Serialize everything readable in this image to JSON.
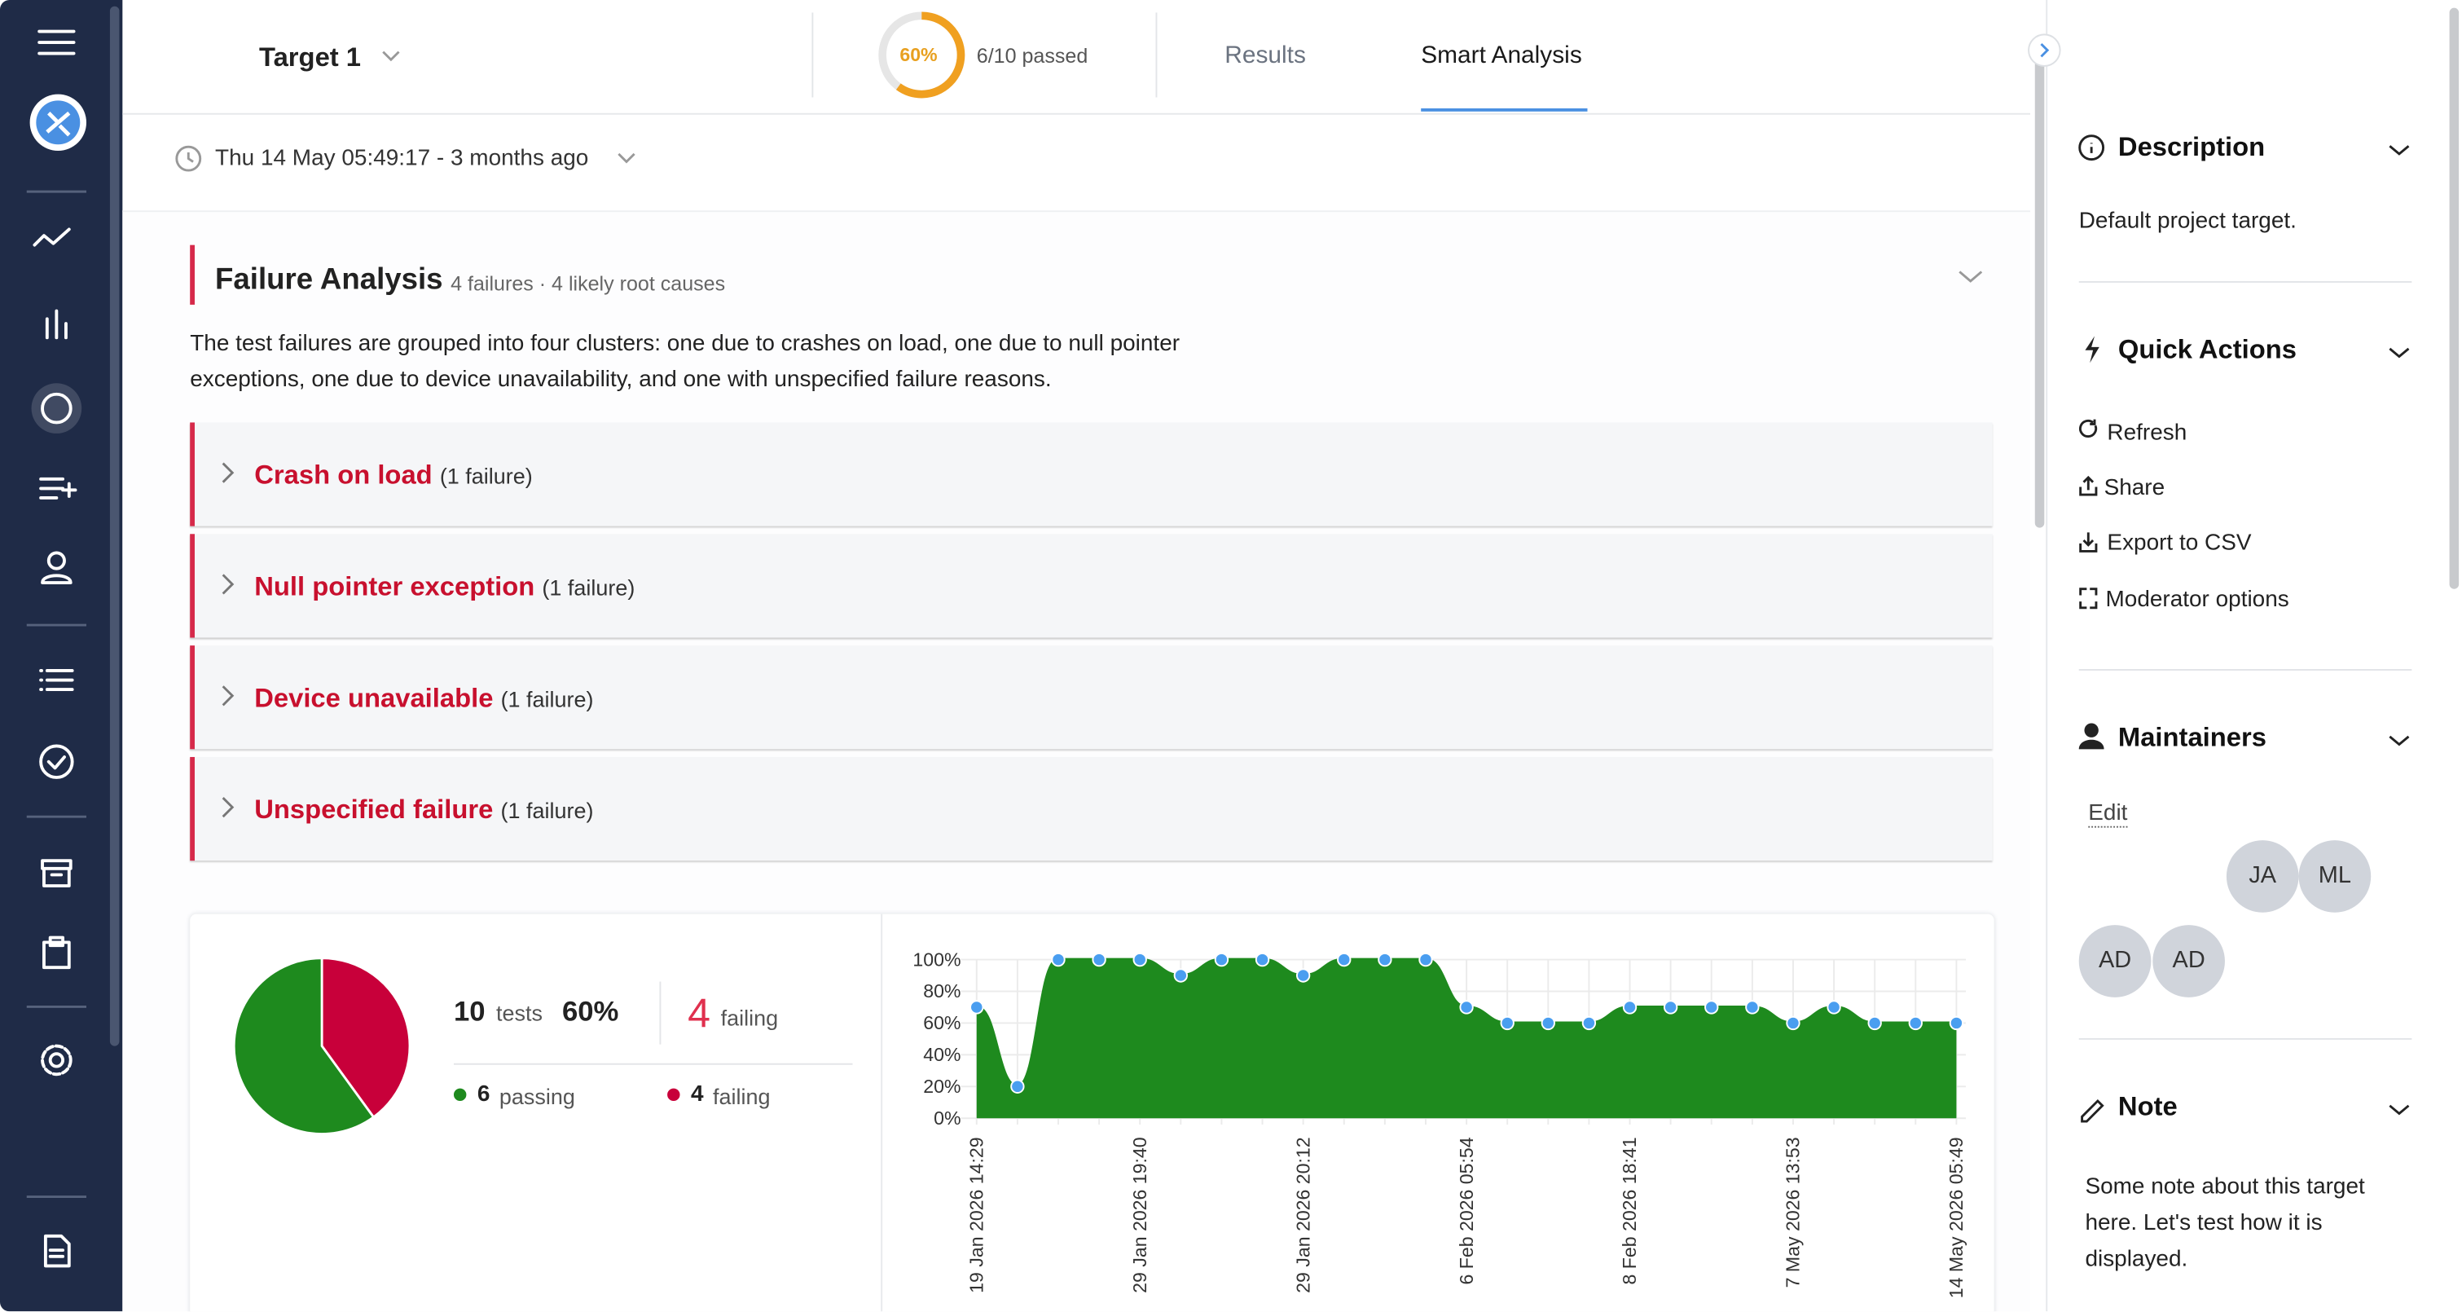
{
  "header": {
    "target": "Target 1",
    "progress": {
      "value": 60,
      "label": "60%"
    },
    "passed": "6/10 passed",
    "tabs": [
      "Results",
      "Smart Analysis"
    ],
    "timestamp": "Thu 14 May 05:49:17 - 3 months ago"
  },
  "analysis": {
    "title": "Failure Analysis",
    "meta": "4 failures · 4 likely root causes",
    "summary": "The test failures are grouped into four clusters: one due to crashes on load, one due to null pointer exceptions, one due to device unavailability, and one with unspecified failure reasons.",
    "clusters": [
      {
        "name": "Crash on load",
        "count": "(1 failure)"
      },
      {
        "name": "Null pointer exception",
        "count": "(1 failure)"
      },
      {
        "name": "Device unavailable",
        "count": "(1 failure)"
      },
      {
        "name": "Unspecified failure",
        "count": "(1 failure)"
      }
    ]
  },
  "stats": {
    "tests": 10,
    "tests_label": "tests",
    "pass_rate": "60%",
    "failing": 4,
    "failing_label": "failing"
  },
  "chart_data": [
    {
      "type": "pie",
      "categories": [
        "passing",
        "failing"
      ],
      "values": [
        6,
        4
      ],
      "colors": [
        "#1e8a1e",
        "#c8003a"
      ]
    },
    {
      "type": "area",
      "categories": [
        "19 Jan 2026 14:29",
        null,
        null,
        null,
        "29 Jan 2026 19:40",
        null,
        null,
        null,
        "29 Jan 2026 20:12",
        null,
        null,
        null,
        "6 Feb 2026 05:54",
        null,
        null,
        null,
        "8 Feb 2026 18:41",
        null,
        null,
        null,
        "7 May 2026 13:53",
        null,
        null,
        null,
        "14 May 2026 05:49"
      ],
      "values": [
        70,
        20,
        100,
        100,
        100,
        90,
        100,
        100,
        90,
        100,
        100,
        100,
        70,
        60,
        60,
        60,
        70,
        70,
        70,
        70,
        60,
        70,
        60,
        60,
        60
      ],
      "color": "#1e8a1e",
      "point_color": "#4a9ef0",
      "ylim": [
        0,
        100
      ],
      "yticks": [
        {
          "value": 0,
          "label": "0%"
        },
        {
          "value": 20,
          "label": "20%"
        },
        {
          "value": 40,
          "label": "40%"
        },
        {
          "value": 60,
          "label": "60%"
        },
        {
          "value": 80,
          "label": "80%"
        },
        {
          "value": 100,
          "label": "100%"
        }
      ],
      "grid": true
    }
  ],
  "sidebar": {
    "description": {
      "title": "Description",
      "text": "Default project target."
    },
    "quick_actions": {
      "title": "Quick Actions",
      "items": [
        "Refresh",
        "Share",
        "Export to CSV",
        "Moderator options"
      ]
    },
    "maintainers": {
      "title": "Maintainers",
      "edit": "Edit",
      "people": [
        "JA",
        "ML",
        "AD",
        "AD"
      ]
    },
    "note": {
      "title": "Note",
      "text": "Some note about this target here. Let's test how it is displayed."
    }
  }
}
